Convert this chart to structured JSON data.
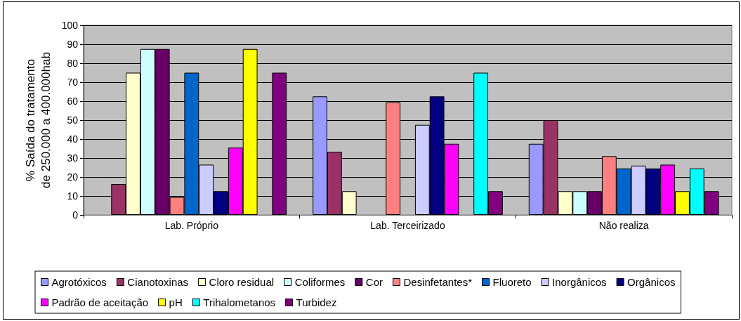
{
  "chart_data": {
    "type": "bar",
    "ylabel": "% Saída do tratamento\nde 250.000 a 400.000hab",
    "categories": [
      "Lab. Próprio",
      "Lab. Terceirizado",
      "Não realiza"
    ],
    "series": [
      {
        "name": "Agrotóxicos",
        "color": "#9999ff",
        "values": [
          null,
          62.5,
          37.5
        ]
      },
      {
        "name": "Cianotoxinas",
        "color": "#993366",
        "values": [
          16.3,
          33.3,
          50
        ]
      },
      {
        "name": "Cloro residual",
        "color": "#ffffcc",
        "values": [
          75,
          12.5,
          12.5
        ]
      },
      {
        "name": "Coliformes",
        "color": "#ccffff",
        "values": [
          87.5,
          null,
          12.5
        ]
      },
      {
        "name": "Cor",
        "color": "#660066",
        "values": [
          87.5,
          null,
          12.5
        ]
      },
      {
        "name": "Desinfetantes*",
        "color": "#ff8080",
        "values": [
          9.4,
          59.4,
          31
        ]
      },
      {
        "name": "Fluoreto",
        "color": "#0066cc",
        "values": [
          75,
          null,
          24.5
        ]
      },
      {
        "name": "Inorgânicos",
        "color": "#ccccff",
        "values": [
          26.5,
          47.5,
          26
        ]
      },
      {
        "name": "Orgânicos",
        "color": "#000080",
        "values": [
          12.5,
          62.5,
          24.5
        ]
      },
      {
        "name": "Padrão de aceitação",
        "color": "#ff00ff",
        "values": [
          35.5,
          37.5,
          26.5
        ]
      },
      {
        "name": "pH",
        "color": "#ffff00",
        "values": [
          87.5,
          null,
          12.5
        ]
      },
      {
        "name": "Trihalometanos",
        "color": "#00ffff",
        "values": [
          null,
          75,
          24.5
        ]
      },
      {
        "name": "Turbidez",
        "color": "#800080",
        "values": [
          75,
          12.5,
          12.5
        ]
      }
    ],
    "ylim": [
      0,
      100
    ],
    "yticks": [
      0,
      10,
      20,
      30,
      40,
      50,
      60,
      70,
      80,
      90,
      100
    ],
    "grid": "y",
    "legend": "bottom"
  }
}
